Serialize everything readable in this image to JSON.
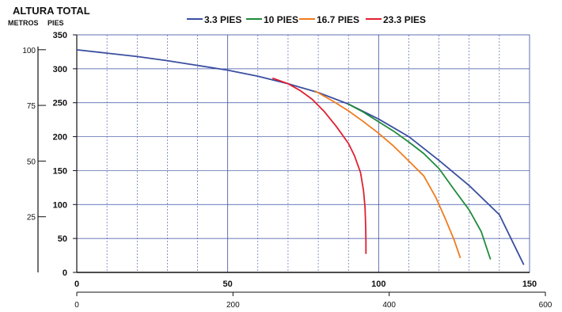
{
  "chart_data": {
    "type": "line",
    "title": "ALTURA TOTAL",
    "y_unit_labels": [
      "METROS",
      "PIES"
    ],
    "y_feet": {
      "min": 0,
      "max": 350,
      "ticks": [
        "0",
        "50",
        "100",
        "150",
        "200",
        "250",
        "300",
        "350"
      ]
    },
    "y_meters": {
      "ticks": [
        "25",
        "50",
        "75",
        "100"
      ],
      "tick_values": [
        25,
        50,
        75,
        100
      ]
    },
    "x_upper": {
      "min": 0,
      "max": 150,
      "ticks": [
        "0",
        "50",
        "100",
        "150"
      ],
      "tick_values": [
        0,
        50,
        100,
        150
      ]
    },
    "x_lower": {
      "ticks": [
        "0",
        "200",
        "400",
        "600"
      ],
      "tick_values": [
        0,
        200,
        400,
        600
      ]
    },
    "grid": true,
    "legend_position": "top",
    "series": [
      {
        "name": "3.3 PIES",
        "color": "#3a4fa0",
        "points": [
          [
            0,
            328
          ],
          [
            10,
            323
          ],
          [
            20,
            318
          ],
          [
            30,
            312
          ],
          [
            40,
            305
          ],
          [
            50,
            298
          ],
          [
            60,
            289
          ],
          [
            70,
            278
          ],
          [
            80,
            265
          ],
          [
            90,
            248
          ],
          [
            100,
            226
          ],
          [
            110,
            200
          ],
          [
            120,
            165
          ],
          [
            130,
            128
          ],
          [
            140,
            85
          ],
          [
            148,
            12
          ]
        ]
      },
      {
        "name": "10 PIES",
        "color": "#1e8a3a",
        "points": [
          [
            90,
            248
          ],
          [
            95,
            236
          ],
          [
            100,
            222
          ],
          [
            105,
            208
          ],
          [
            110,
            192
          ],
          [
            115,
            175
          ],
          [
            120,
            153
          ],
          [
            125,
            122
          ],
          [
            130,
            92
          ],
          [
            134,
            60
          ],
          [
            137,
            20
          ]
        ]
      },
      {
        "name": "16.7 PIES",
        "color": "#f07c1e",
        "points": [
          [
            79,
            267
          ],
          [
            85,
            252
          ],
          [
            90,
            238
          ],
          [
            95,
            222
          ],
          [
            100,
            205
          ],
          [
            105,
            186
          ],
          [
            110,
            164
          ],
          [
            115,
            142
          ],
          [
            119,
            110
          ],
          [
            122,
            80
          ],
          [
            125,
            48
          ],
          [
            127,
            22
          ]
        ]
      },
      {
        "name": "23.3 PIES",
        "color": "#e02030",
        "points": [
          [
            65,
            286
          ],
          [
            70,
            278
          ],
          [
            74,
            268
          ],
          [
            78,
            255
          ],
          [
            82,
            237
          ],
          [
            86,
            215
          ],
          [
            90,
            190
          ],
          [
            92,
            172
          ],
          [
            94,
            147
          ],
          [
            95,
            120
          ],
          [
            95.5,
            95
          ],
          [
            95.7,
            70
          ],
          [
            95.8,
            45
          ],
          [
            95.8,
            28
          ]
        ]
      }
    ]
  }
}
